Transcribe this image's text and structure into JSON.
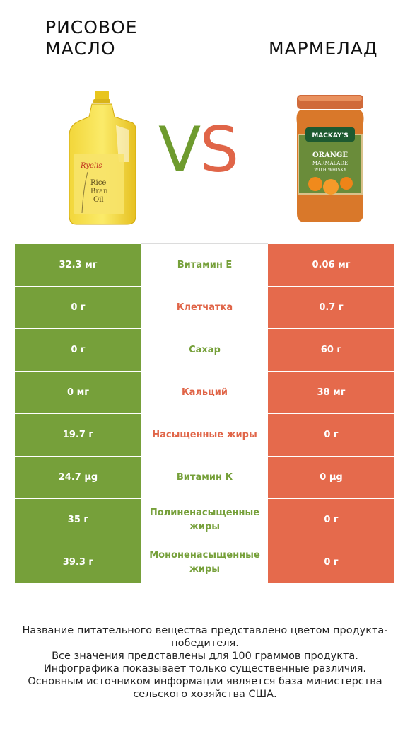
{
  "header": {
    "left_title": "Рисовое масло",
    "right_title": "Мармелад",
    "vs_v": "V",
    "vs_s": "S"
  },
  "images": {
    "left_label_line1": "Rice",
    "left_label_line2": "Bran",
    "left_label_line3": "Oil",
    "left_brand": "Ryelis",
    "right_brand": "MACKAY'S",
    "right_label_line1": "ORANGE",
    "right_label_line2": "MARMALADE",
    "right_label_line3": "WITH WHISKY"
  },
  "colors": {
    "winner_left": "#76a03a",
    "winner_right": "#e56a4c"
  },
  "rows": [
    {
      "left": "32.3 мг",
      "name": "Витамин E",
      "right": "0.06 мг",
      "winner": "left"
    },
    {
      "left": "0 г",
      "name": "Клетчатка",
      "right": "0.7 г",
      "winner": "right"
    },
    {
      "left": "0 г",
      "name": "Сахар",
      "right": "60 г",
      "winner": "left"
    },
    {
      "left": "0 мг",
      "name": "Кальций",
      "right": "38 мг",
      "winner": "right"
    },
    {
      "left": "19.7 г",
      "name": "Насыщенные жиры",
      "right": "0 г",
      "winner": "right"
    },
    {
      "left": "24.7 µg",
      "name": "Витамин К",
      "right": "0 µg",
      "winner": "left"
    },
    {
      "left": "35 г",
      "name": "Полиненасыщенные жиры",
      "right": "0 г",
      "winner": "left"
    },
    {
      "left": "39.3 г",
      "name": "Мононенасыщенные жиры",
      "right": "0 г",
      "winner": "left"
    }
  ],
  "footer": {
    "line1": "Название питательного вещества представлено цветом продукта-победителя.",
    "line2": "Все значения представлены для 100 граммов продукта.",
    "line3": "Инфографика показывает только существенные различия.",
    "line4": "Основным источником информации является база министерства сельского хозяйства США."
  }
}
